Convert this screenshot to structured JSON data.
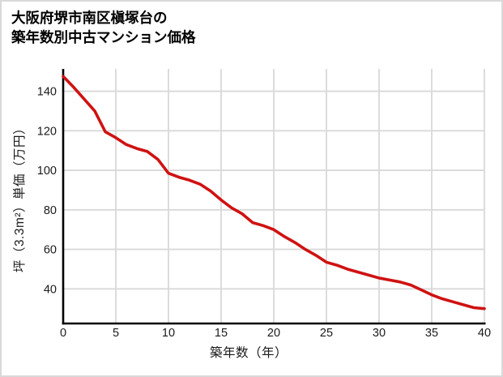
{
  "title": {
    "line1": "大阪府堺市南区槇塚台の",
    "line2": "築年数別中古マンション価格"
  },
  "colors": {
    "line": "#cf1212",
    "grid": "#d9d9d9",
    "axis": "#000000",
    "tick_text": "#1a1a1a",
    "background": "#ffffff",
    "frame_border": "#d9d9d9"
  },
  "chart_data": {
    "type": "line",
    "title": "大阪府堺市南区槇塚台の 築年数別中古マンション価格",
    "xlabel": "築年数（年）",
    "ylabel": "坪（3.3m²）単価（万円）",
    "x": [
      0,
      1,
      2,
      3,
      4,
      5,
      6,
      7,
      8,
      9,
      10,
      11,
      12,
      13,
      14,
      15,
      16,
      17,
      18,
      19,
      20,
      21,
      22,
      23,
      24,
      25,
      26,
      27,
      28,
      29,
      30,
      31,
      32,
      33,
      34,
      35,
      36,
      37,
      38,
      39,
      40
    ],
    "values": [
      147.5,
      142,
      136,
      130,
      119.5,
      116.5,
      113,
      111,
      109.5,
      105.5,
      98.5,
      96.5,
      95,
      93,
      89.5,
      85,
      81,
      78,
      73.5,
      72,
      70,
      66.5,
      63.5,
      60,
      57,
      53.5,
      52,
      50,
      48.5,
      47,
      45.5,
      44.5,
      43.5,
      42,
      39.5,
      37,
      35,
      33.5,
      32,
      30.5,
      30
    ],
    "x_ticks": [
      0,
      5,
      10,
      15,
      20,
      25,
      30,
      35,
      40
    ],
    "y_ticks": [
      40,
      60,
      80,
      100,
      120,
      140
    ],
    "xlim": [
      0,
      40
    ],
    "ylim": [
      22.5,
      151.3
    ],
    "grid": true,
    "legend": false,
    "line_color": "#cf1212"
  }
}
